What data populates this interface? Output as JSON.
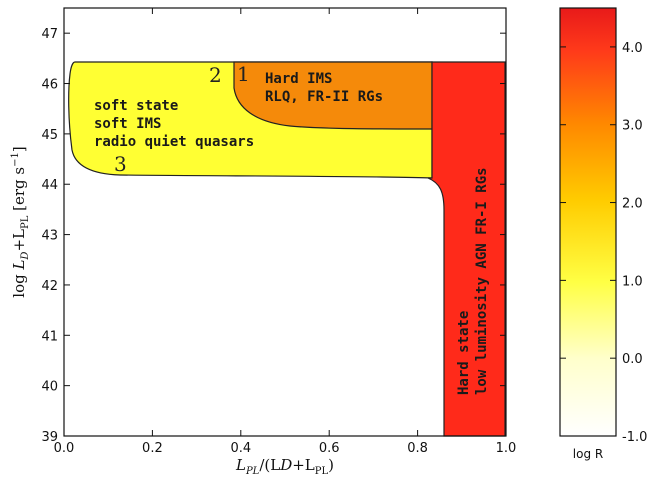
{
  "axes": {
    "xlabel_main": "L",
    "xlabel_sub1": "PL",
    "xlabel_mid": "/(L",
    "xlabel_sub2": "D",
    "xlabel_plus": "+L",
    "xlabel_sub3": "PL",
    "xlabel_close": ")",
    "ylabel": "log L_D + L_PL [erg s^-1]",
    "ylabel_log": "log ",
    "ylabel_L1": "L",
    "ylabel_subD": "D",
    "ylabel_plus": "+L",
    "ylabel_subPL": "PL",
    "ylabel_units": " [erg s",
    "ylabel_exp": "−1",
    "ylabel_close": "]",
    "x_ticks": [
      "0.0",
      "0.2",
      "0.4",
      "0.6",
      "0.8",
      "1.0"
    ],
    "x_tick_values": [
      0.0,
      0.2,
      0.4,
      0.6,
      0.8,
      1.0
    ],
    "y_ticks": [
      "39",
      "40",
      "41",
      "42",
      "43",
      "44",
      "45",
      "46",
      "47"
    ],
    "y_tick_values": [
      39,
      40,
      41,
      42,
      43,
      44,
      45,
      46,
      47
    ],
    "xlim": [
      0.0,
      1.0
    ],
    "ylim": [
      39,
      47.5
    ]
  },
  "regions": {
    "soft": {
      "color": "#ffff33",
      "lines": [
        "soft state",
        "soft IMS",
        "radio quiet quasars"
      ]
    },
    "hard_ims": {
      "color": "#f58a0a",
      "lines": [
        "Hard IMS",
        "RLQ, FR-II RGs"
      ]
    },
    "hard_state": {
      "color": "#ff2a1a",
      "lines": [
        "Hard state",
        "low luminosity AGN FR-I RGs"
      ]
    }
  },
  "markers": {
    "one": "1",
    "two": "2",
    "three": "3"
  },
  "colorbar": {
    "label": "log R",
    "ticks": [
      "4.0",
      "3.0",
      "2.0",
      "1.0",
      "0.0",
      "-1.0"
    ],
    "tick_values": [
      4.0,
      3.0,
      2.0,
      1.0,
      0.0,
      -1.0
    ],
    "range": [
      -1.0,
      4.5
    ],
    "colors": [
      "#ffffff",
      "#ffff99",
      "#ffee00",
      "#ffaa00",
      "#ff5500",
      "#ee1c1c"
    ]
  }
}
